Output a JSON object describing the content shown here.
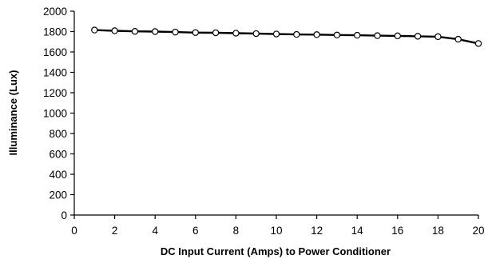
{
  "chart_data": {
    "type": "line",
    "xlabel": "DC Input Current (Amps) to Power Conditioner",
    "ylabel": "Illuminance (Lux)",
    "xlim": [
      0,
      20
    ],
    "ylim": [
      0,
      2000
    ],
    "x_ticks": [
      0,
      2,
      4,
      6,
      8,
      10,
      12,
      14,
      16,
      18,
      20
    ],
    "y_ticks": [
      0,
      200,
      400,
      600,
      800,
      1000,
      1200,
      1400,
      1600,
      1800,
      2000
    ],
    "grid": false,
    "legend": "none",
    "series": [
      {
        "x": [
          1,
          2,
          3,
          4,
          5,
          6,
          7,
          8,
          9,
          10,
          11,
          12,
          13,
          14,
          15,
          16,
          17,
          18,
          19,
          20
        ],
        "values": [
          1815,
          1808,
          1802,
          1800,
          1795,
          1790,
          1788,
          1784,
          1780,
          1776,
          1772,
          1770,
          1766,
          1764,
          1760,
          1758,
          1754,
          1750,
          1725,
          1683
        ],
        "color": "#000000",
        "marker": "open-circle"
      }
    ]
  }
}
